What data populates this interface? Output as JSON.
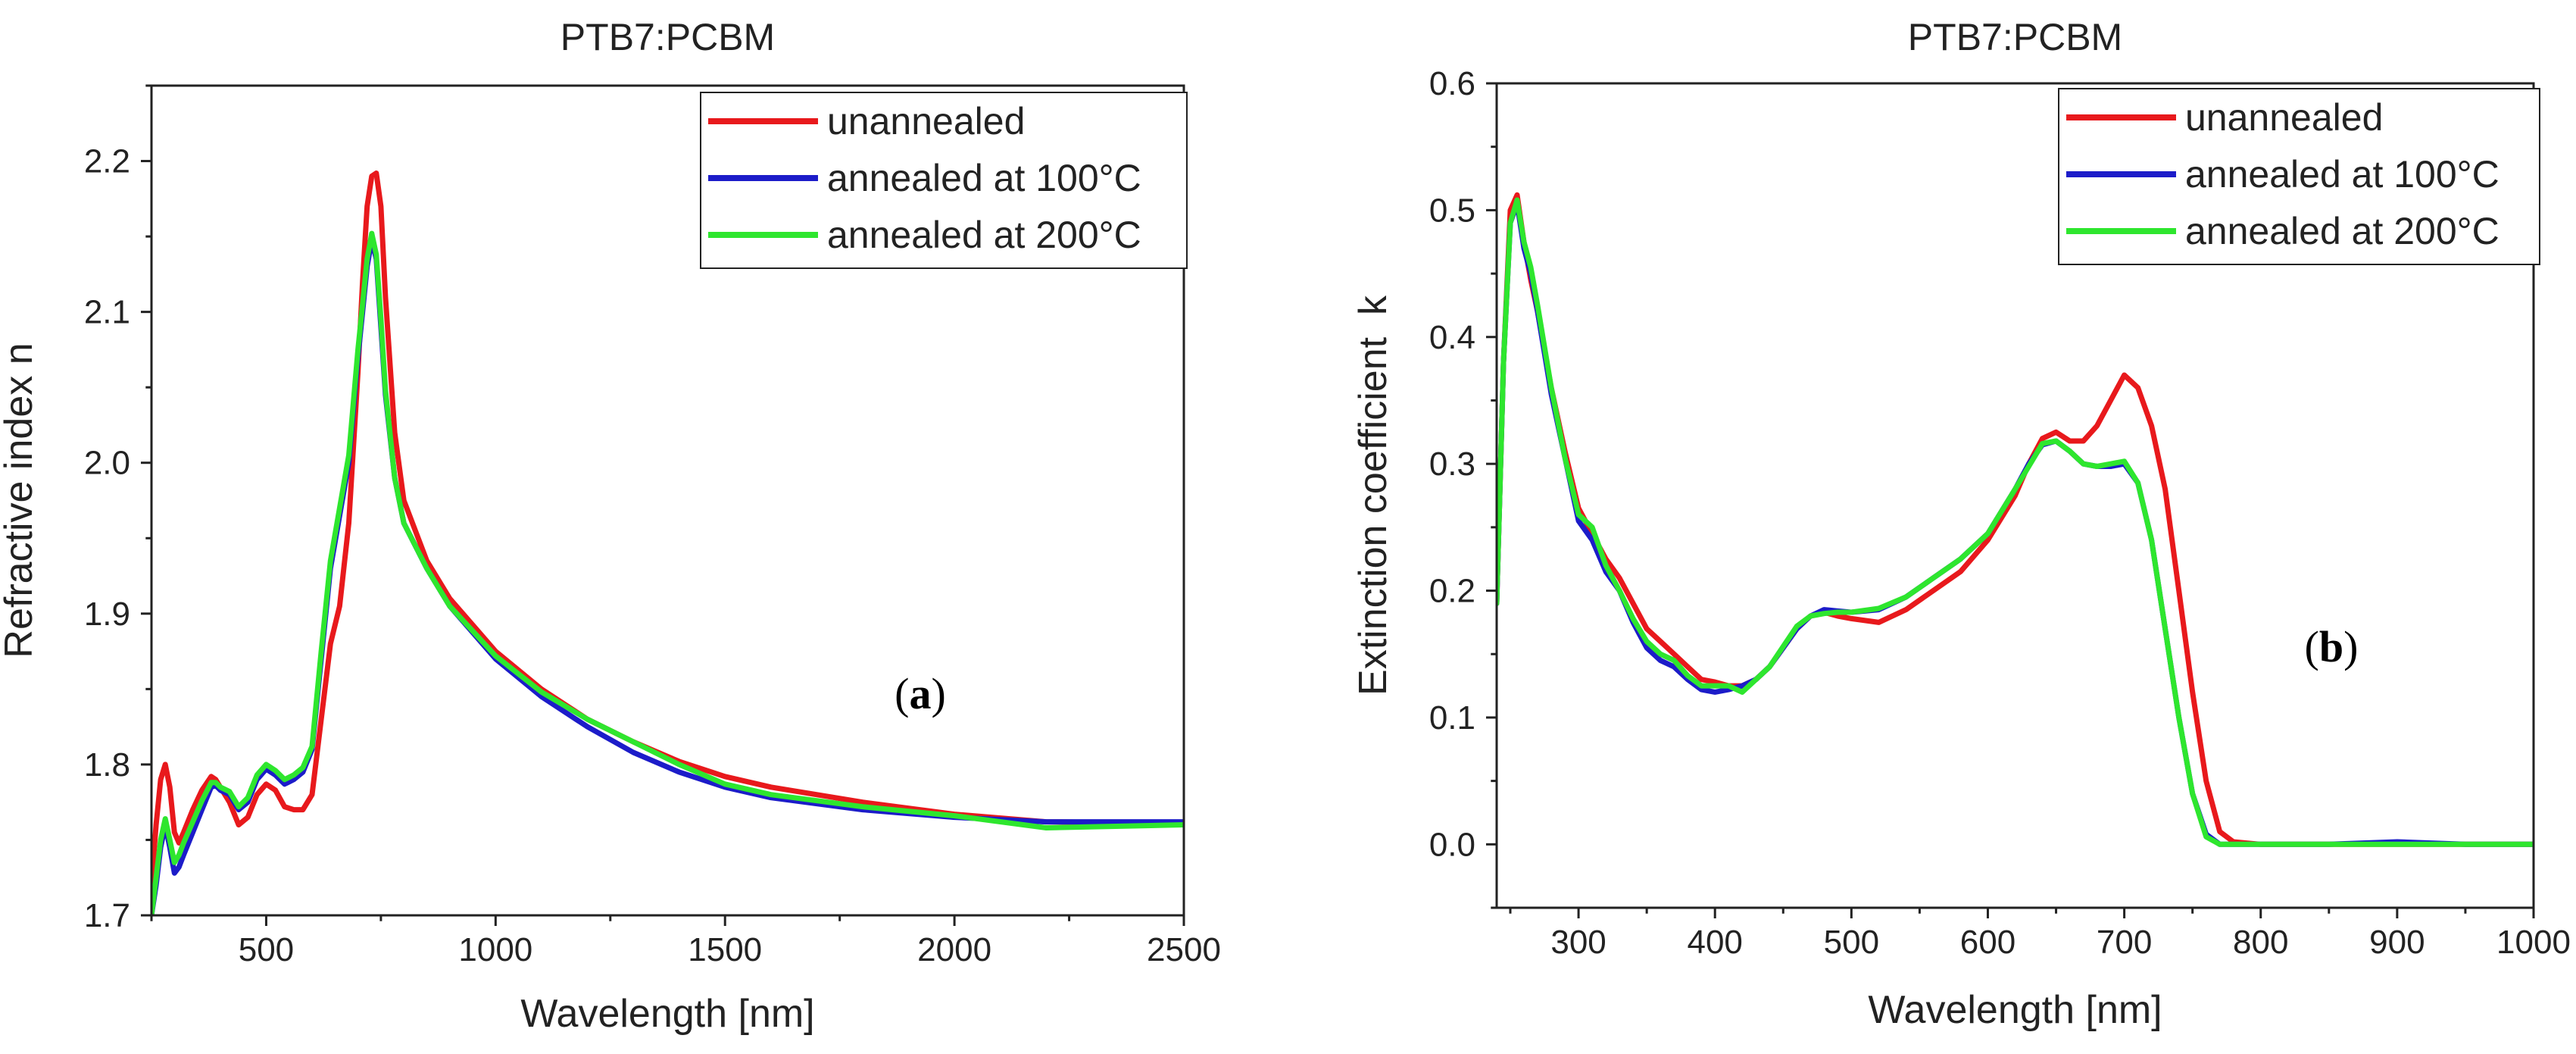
{
  "chart_data": [
    {
      "type": "line",
      "title": "PTB7:PCBM",
      "xlabel": "Wavelength [nm]",
      "ylabel": "Refractive index n",
      "xlim": [
        250,
        2500
      ],
      "ylim": [
        1.7,
        2.25
      ],
      "xticks": [
        500,
        1000,
        1500,
        2000,
        2500
      ],
      "xtick_labels": [
        "500",
        "1000",
        "1500",
        "2000",
        "2500"
      ],
      "yticks": [
        1.7,
        1.8,
        1.9,
        2.0,
        2.1,
        2.2
      ],
      "ytick_labels": [
        "1.7",
        "1.8",
        "1.9",
        "2.0",
        "2.1",
        "2.2"
      ],
      "panel_label": "a",
      "legend_position": "top-right",
      "series": [
        {
          "name": "unannealed",
          "color": "#e8191c",
          "x": [
            250,
            260,
            270,
            280,
            290,
            300,
            310,
            320,
            340,
            360,
            380,
            390,
            400,
            420,
            440,
            460,
            480,
            500,
            520,
            540,
            560,
            580,
            600,
            620,
            640,
            660,
            680,
            700,
            710,
            720,
            730,
            740,
            750,
            760,
            780,
            800,
            850,
            900,
            1000,
            1100,
            1200,
            1300,
            1400,
            1500,
            1600,
            1800,
            2000,
            2200,
            2500
          ],
          "y": [
            1.72,
            1.76,
            1.79,
            1.8,
            1.785,
            1.755,
            1.748,
            1.755,
            1.77,
            1.783,
            1.792,
            1.79,
            1.785,
            1.775,
            1.76,
            1.765,
            1.78,
            1.787,
            1.783,
            1.772,
            1.77,
            1.77,
            1.78,
            1.83,
            1.88,
            1.905,
            1.96,
            2.06,
            2.12,
            2.17,
            2.19,
            2.192,
            2.17,
            2.11,
            2.02,
            1.975,
            1.935,
            1.91,
            1.875,
            1.85,
            1.83,
            1.815,
            1.802,
            1.792,
            1.785,
            1.775,
            1.767,
            1.762,
            1.761
          ]
        },
        {
          "name": "annealed at 100°C",
          "color": "#1c1cc9",
          "x": [
            250,
            260,
            270,
            280,
            290,
            300,
            310,
            320,
            340,
            360,
            380,
            390,
            400,
            420,
            440,
            460,
            480,
            500,
            520,
            540,
            560,
            580,
            600,
            620,
            640,
            660,
            680,
            700,
            710,
            720,
            730,
            740,
            750,
            760,
            780,
            800,
            850,
            900,
            1000,
            1100,
            1200,
            1300,
            1400,
            1500,
            1600,
            1800,
            2000,
            2200,
            2500
          ],
          "y": [
            1.7,
            1.72,
            1.745,
            1.76,
            1.745,
            1.728,
            1.732,
            1.74,
            1.755,
            1.77,
            1.785,
            1.786,
            1.783,
            1.78,
            1.77,
            1.775,
            1.79,
            1.797,
            1.793,
            1.787,
            1.79,
            1.795,
            1.81,
            1.87,
            1.93,
            1.965,
            2.0,
            2.07,
            2.1,
            2.13,
            2.148,
            2.135,
            2.09,
            2.045,
            1.99,
            1.96,
            1.93,
            1.905,
            1.87,
            1.845,
            1.825,
            1.808,
            1.795,
            1.785,
            1.778,
            1.77,
            1.765,
            1.762,
            1.762
          ]
        },
        {
          "name": "annealed at 200°C",
          "color": "#2ee62e",
          "x": [
            250,
            260,
            270,
            280,
            290,
            300,
            310,
            320,
            340,
            360,
            380,
            390,
            400,
            420,
            440,
            460,
            480,
            500,
            520,
            540,
            560,
            580,
            600,
            620,
            640,
            660,
            680,
            700,
            710,
            720,
            730,
            740,
            750,
            760,
            780,
            800,
            850,
            900,
            1000,
            1100,
            1200,
            1300,
            1400,
            1500,
            1600,
            1800,
            2000,
            2200,
            2500
          ],
          "y": [
            1.7,
            1.725,
            1.75,
            1.764,
            1.75,
            1.735,
            1.74,
            1.748,
            1.762,
            1.776,
            1.788,
            1.788,
            1.785,
            1.782,
            1.772,
            1.778,
            1.793,
            1.8,
            1.796,
            1.79,
            1.793,
            1.798,
            1.812,
            1.875,
            1.935,
            1.97,
            2.005,
            2.075,
            2.105,
            2.135,
            2.152,
            2.138,
            2.095,
            2.048,
            1.99,
            1.96,
            1.93,
            1.905,
            1.872,
            1.848,
            1.83,
            1.815,
            1.8,
            1.787,
            1.78,
            1.772,
            1.766,
            1.758,
            1.76
          ]
        }
      ]
    },
    {
      "type": "line",
      "title": "PTB7:PCBM",
      "xlabel": "Wavelength [nm]",
      "ylabel": "Extinction coefficient  k",
      "xlim": [
        240,
        1000
      ],
      "ylim": [
        -0.05,
        0.6
      ],
      "xticks": [
        300,
        400,
        500,
        600,
        700,
        800,
        900,
        1000
      ],
      "xtick_labels": [
        "300",
        "400",
        "500",
        "600",
        "700",
        "800",
        "900",
        "1000"
      ],
      "yticks": [
        0.0,
        0.1,
        0.2,
        0.3,
        0.4,
        0.5,
        0.6
      ],
      "ytick_labels": [
        "0.0",
        "0.1",
        "0.2",
        "0.3",
        "0.4",
        "0.5",
        "0.6"
      ],
      "panel_label": "b",
      "legend_position": "top-right",
      "series": [
        {
          "name": "unannealed",
          "color": "#e8191c",
          "x": [
            240,
            245,
            250,
            255,
            260,
            265,
            270,
            280,
            290,
            300,
            310,
            320,
            330,
            340,
            350,
            360,
            370,
            380,
            390,
            400,
            410,
            420,
            430,
            440,
            450,
            460,
            470,
            480,
            490,
            500,
            520,
            540,
            560,
            580,
            600,
            620,
            630,
            640,
            650,
            660,
            670,
            680,
            690,
            700,
            710,
            720,
            730,
            740,
            750,
            760,
            770,
            780,
            800,
            850,
            900,
            950,
            1000
          ],
          "y": [
            0.19,
            0.38,
            0.5,
            0.512,
            0.475,
            0.445,
            0.42,
            0.36,
            0.31,
            0.265,
            0.245,
            0.225,
            0.21,
            0.19,
            0.17,
            0.16,
            0.15,
            0.14,
            0.13,
            0.128,
            0.125,
            0.125,
            0.13,
            0.14,
            0.155,
            0.17,
            0.18,
            0.183,
            0.18,
            0.178,
            0.175,
            0.185,
            0.2,
            0.215,
            0.24,
            0.275,
            0.3,
            0.32,
            0.325,
            0.318,
            0.318,
            0.33,
            0.35,
            0.37,
            0.36,
            0.33,
            0.28,
            0.2,
            0.12,
            0.05,
            0.01,
            0.002,
            0.0,
            0.0,
            0.0,
            0.0,
            0.0
          ]
        },
        {
          "name": "annealed at 100°C",
          "color": "#1c1cc9",
          "x": [
            240,
            245,
            250,
            255,
            260,
            265,
            270,
            280,
            290,
            300,
            310,
            320,
            330,
            340,
            350,
            360,
            370,
            380,
            390,
            400,
            410,
            420,
            430,
            440,
            450,
            460,
            470,
            480,
            490,
            500,
            520,
            540,
            560,
            580,
            600,
            620,
            630,
            640,
            650,
            660,
            670,
            680,
            690,
            700,
            710,
            720,
            730,
            740,
            750,
            760,
            770,
            780,
            800,
            850,
            900,
            950,
            1000
          ],
          "y": [
            0.19,
            0.38,
            0.49,
            0.505,
            0.47,
            0.45,
            0.42,
            0.355,
            0.305,
            0.255,
            0.24,
            0.215,
            0.2,
            0.175,
            0.155,
            0.145,
            0.14,
            0.13,
            0.122,
            0.12,
            0.122,
            0.125,
            0.13,
            0.14,
            0.155,
            0.17,
            0.18,
            0.185,
            0.184,
            0.183,
            0.185,
            0.195,
            0.21,
            0.225,
            0.245,
            0.28,
            0.3,
            0.315,
            0.318,
            0.31,
            0.3,
            0.298,
            0.298,
            0.3,
            0.285,
            0.24,
            0.17,
            0.1,
            0.04,
            0.008,
            0.0,
            0.0,
            0.0,
            0.0,
            0.002,
            0.0,
            0.0
          ]
        },
        {
          "name": "annealed at 200°C",
          "color": "#2ee62e",
          "x": [
            240,
            245,
            250,
            255,
            260,
            265,
            270,
            280,
            290,
            300,
            310,
            320,
            330,
            340,
            350,
            360,
            370,
            380,
            390,
            400,
            410,
            420,
            430,
            440,
            450,
            460,
            470,
            480,
            490,
            500,
            520,
            540,
            560,
            580,
            600,
            620,
            630,
            640,
            650,
            660,
            670,
            680,
            690,
            700,
            710,
            720,
            730,
            740,
            750,
            760,
            770,
            780,
            800,
            850,
            900,
            950,
            1000
          ],
          "y": [
            0.19,
            0.38,
            0.49,
            0.508,
            0.475,
            0.455,
            0.425,
            0.36,
            0.305,
            0.26,
            0.25,
            0.22,
            0.2,
            0.178,
            0.16,
            0.15,
            0.145,
            0.133,
            0.125,
            0.125,
            0.125,
            0.12,
            0.13,
            0.14,
            0.156,
            0.172,
            0.18,
            0.182,
            0.183,
            0.183,
            0.186,
            0.195,
            0.21,
            0.225,
            0.245,
            0.28,
            0.298,
            0.316,
            0.318,
            0.31,
            0.3,
            0.298,
            0.3,
            0.302,
            0.285,
            0.24,
            0.17,
            0.1,
            0.04,
            0.006,
            0.0,
            0.0,
            0.0,
            0.0,
            0.0,
            0.0,
            0.0
          ]
        }
      ]
    }
  ]
}
